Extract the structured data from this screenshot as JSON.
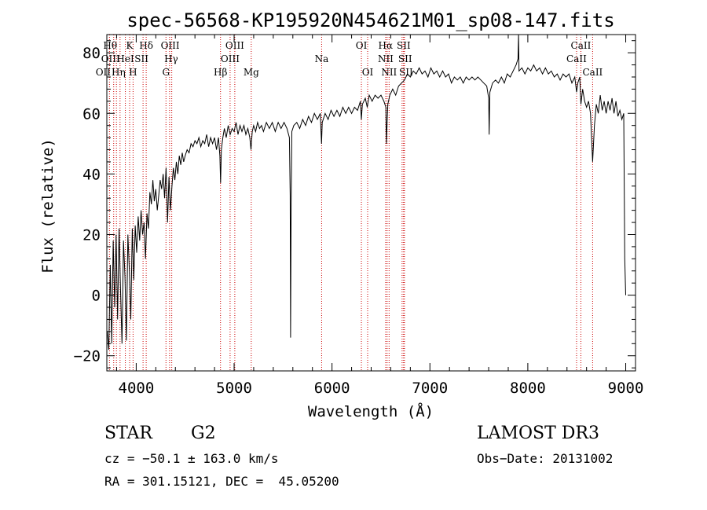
{
  "chart_data": {
    "type": "line",
    "title": "spec-56568-KP195920N454621M01_sp08-147.fits",
    "xlabel": "Wavelength (Å)",
    "ylabel": "Flux (relative)",
    "xlim": [
      3700,
      9100
    ],
    "ylim": [
      -25,
      86
    ],
    "xticks": [
      4000,
      5000,
      6000,
      7000,
      8000,
      9000
    ],
    "yticks": [
      -20,
      0,
      20,
      40,
      60,
      80
    ],
    "grid": false,
    "series": [
      {
        "name": "spectrum",
        "points": [
          [
            3705,
            -12
          ],
          [
            3720,
            -18
          ],
          [
            3735,
            10
          ],
          [
            3750,
            -16
          ],
          [
            3765,
            18
          ],
          [
            3780,
            -4
          ],
          [
            3795,
            20
          ],
          [
            3810,
            -8
          ],
          [
            3825,
            22
          ],
          [
            3840,
            2
          ],
          [
            3855,
            -16
          ],
          [
            3870,
            18
          ],
          [
            3885,
            6
          ],
          [
            3900,
            -15
          ],
          [
            3915,
            20
          ],
          [
            3930,
            8
          ],
          [
            3945,
            -8
          ],
          [
            3960,
            22
          ],
          [
            3975,
            5
          ],
          [
            3990,
            23
          ],
          [
            4005,
            14
          ],
          [
            4020,
            26
          ],
          [
            4035,
            18
          ],
          [
            4050,
            28
          ],
          [
            4065,
            20
          ],
          [
            4080,
            24
          ],
          [
            4095,
            12
          ],
          [
            4110,
            27
          ],
          [
            4125,
            22
          ],
          [
            4140,
            34
          ],
          [
            4155,
            30
          ],
          [
            4170,
            38
          ],
          [
            4185,
            31
          ],
          [
            4200,
            35
          ],
          [
            4215,
            28
          ],
          [
            4230,
            33
          ],
          [
            4245,
            38
          ],
          [
            4260,
            35
          ],
          [
            4275,
            40
          ],
          [
            4290,
            32
          ],
          [
            4305,
            42
          ],
          [
            4320,
            24
          ],
          [
            4335,
            39
          ],
          [
            4350,
            28
          ],
          [
            4365,
            36
          ],
          [
            4380,
            42
          ],
          [
            4395,
            38
          ],
          [
            4410,
            44
          ],
          [
            4425,
            40
          ],
          [
            4440,
            46
          ],
          [
            4455,
            43
          ],
          [
            4470,
            47
          ],
          [
            4485,
            44
          ],
          [
            4500,
            46
          ],
          [
            4520,
            48
          ],
          [
            4540,
            47
          ],
          [
            4560,
            50
          ],
          [
            4580,
            49
          ],
          [
            4600,
            51
          ],
          [
            4620,
            50
          ],
          [
            4640,
            52
          ],
          [
            4660,
            49
          ],
          [
            4680,
            51
          ],
          [
            4700,
            50
          ],
          [
            4720,
            53
          ],
          [
            4740,
            49
          ],
          [
            4760,
            52
          ],
          [
            4780,
            50
          ],
          [
            4800,
            52
          ],
          [
            4820,
            48
          ],
          [
            4840,
            52
          ],
          [
            4855,
            46
          ],
          [
            4862,
            37
          ],
          [
            4870,
            48
          ],
          [
            4885,
            52
          ],
          [
            4900,
            55
          ],
          [
            4920,
            52
          ],
          [
            4940,
            56
          ],
          [
            4960,
            53
          ],
          [
            4980,
            55
          ],
          [
            5000,
            54
          ],
          [
            5020,
            57
          ],
          [
            5040,
            53
          ],
          [
            5060,
            56
          ],
          [
            5080,
            54
          ],
          [
            5100,
            56
          ],
          [
            5120,
            53
          ],
          [
            5140,
            55
          ],
          [
            5160,
            52
          ],
          [
            5172,
            48
          ],
          [
            5185,
            54
          ],
          [
            5200,
            56
          ],
          [
            5220,
            54
          ],
          [
            5240,
            57
          ],
          [
            5260,
            55
          ],
          [
            5280,
            56
          ],
          [
            5300,
            54
          ],
          [
            5330,
            57
          ],
          [
            5360,
            55
          ],
          [
            5390,
            57
          ],
          [
            5420,
            54
          ],
          [
            5450,
            57
          ],
          [
            5480,
            55
          ],
          [
            5510,
            57
          ],
          [
            5540,
            55
          ],
          [
            5565,
            52
          ],
          [
            5573,
            33
          ],
          [
            5577,
            -14
          ],
          [
            5582,
            30
          ],
          [
            5590,
            54
          ],
          [
            5610,
            56
          ],
          [
            5640,
            57
          ],
          [
            5670,
            55
          ],
          [
            5700,
            58
          ],
          [
            5730,
            56
          ],
          [
            5760,
            59
          ],
          [
            5790,
            57
          ],
          [
            5820,
            60
          ],
          [
            5850,
            58
          ],
          [
            5880,
            60
          ],
          [
            5893,
            50
          ],
          [
            5900,
            57
          ],
          [
            5930,
            60
          ],
          [
            5960,
            58
          ],
          [
            5990,
            61
          ],
          [
            6020,
            59
          ],
          [
            6050,
            61
          ],
          [
            6080,
            59
          ],
          [
            6110,
            62
          ],
          [
            6140,
            60
          ],
          [
            6170,
            62
          ],
          [
            6200,
            60
          ],
          [
            6230,
            62
          ],
          [
            6260,
            61
          ],
          [
            6290,
            64
          ],
          [
            6300,
            58
          ],
          [
            6310,
            63
          ],
          [
            6340,
            65
          ],
          [
            6360,
            62
          ],
          [
            6380,
            66
          ],
          [
            6410,
            64
          ],
          [
            6440,
            66
          ],
          [
            6470,
            65
          ],
          [
            6500,
            66
          ],
          [
            6530,
            64
          ],
          [
            6550,
            62
          ],
          [
            6556,
            50
          ],
          [
            6563,
            57
          ],
          [
            6570,
            63
          ],
          [
            6590,
            66
          ],
          [
            6620,
            68
          ],
          [
            6650,
            66
          ],
          [
            6680,
            69
          ],
          [
            6710,
            70
          ],
          [
            6740,
            71
          ],
          [
            6770,
            73
          ],
          [
            6800,
            72
          ],
          [
            6830,
            74
          ],
          [
            6860,
            73
          ],
          [
            6890,
            75
          ],
          [
            6920,
            73
          ],
          [
            6950,
            74
          ],
          [
            6980,
            72
          ],
          [
            7010,
            75
          ],
          [
            7040,
            73
          ],
          [
            7070,
            74
          ],
          [
            7100,
            72
          ],
          [
            7130,
            74
          ],
          [
            7160,
            72
          ],
          [
            7190,
            73
          ],
          [
            7220,
            70
          ],
          [
            7250,
            72
          ],
          [
            7280,
            71
          ],
          [
            7310,
            72
          ],
          [
            7340,
            70
          ],
          [
            7370,
            72
          ],
          [
            7400,
            71
          ],
          [
            7430,
            72
          ],
          [
            7460,
            71
          ],
          [
            7490,
            72
          ],
          [
            7520,
            71
          ],
          [
            7550,
            70
          ],
          [
            7580,
            69
          ],
          [
            7600,
            65
          ],
          [
            7605,
            53
          ],
          [
            7612,
            67
          ],
          [
            7640,
            70
          ],
          [
            7670,
            71
          ],
          [
            7700,
            70
          ],
          [
            7730,
            72
          ],
          [
            7760,
            70
          ],
          [
            7790,
            73
          ],
          [
            7820,
            72
          ],
          [
            7850,
            74
          ],
          [
            7880,
            76
          ],
          [
            7900,
            78
          ],
          [
            7905,
            86
          ],
          [
            7910,
            74
          ],
          [
            7940,
            75
          ],
          [
            7970,
            73
          ],
          [
            8000,
            75
          ],
          [
            8030,
            74
          ],
          [
            8060,
            76
          ],
          [
            8090,
            74
          ],
          [
            8120,
            75
          ],
          [
            8150,
            73
          ],
          [
            8180,
            75
          ],
          [
            8210,
            73
          ],
          [
            8240,
            74
          ],
          [
            8270,
            72
          ],
          [
            8300,
            73
          ],
          [
            8330,
            71
          ],
          [
            8360,
            73
          ],
          [
            8390,
            72
          ],
          [
            8420,
            73
          ],
          [
            8450,
            70
          ],
          [
            8480,
            72
          ],
          [
            8498,
            67
          ],
          [
            8510,
            70
          ],
          [
            8530,
            72
          ],
          [
            8542,
            63
          ],
          [
            8560,
            68
          ],
          [
            8580,
            64
          ],
          [
            8600,
            62
          ],
          [
            8620,
            64
          ],
          [
            8640,
            60
          ],
          [
            8662,
            44
          ],
          [
            8680,
            56
          ],
          [
            8700,
            63
          ],
          [
            8720,
            60
          ],
          [
            8740,
            66
          ],
          [
            8760,
            61
          ],
          [
            8780,
            64
          ],
          [
            8800,
            60
          ],
          [
            8820,
            64
          ],
          [
            8840,
            61
          ],
          [
            8860,
            65
          ],
          [
            8880,
            60
          ],
          [
            8900,
            64
          ],
          [
            8920,
            59
          ],
          [
            8940,
            61
          ],
          [
            8960,
            58
          ],
          [
            8980,
            60
          ],
          [
            8990,
            12
          ],
          [
            9000,
            0
          ]
        ]
      }
    ],
    "line_annotations": [
      {
        "name": "OII",
        "wavelength": 3727,
        "label": "OII",
        "row": 2,
        "dx": -8
      },
      {
        "name": "Hθ",
        "wavelength": 3798,
        "label": "Hθ",
        "row": 0,
        "dx": -8
      },
      {
        "name": "OIII",
        "wavelength": 3770,
        "label": "OIII",
        "row": 1,
        "dx": -4
      },
      {
        "name": "Hη",
        "wavelength": 3835,
        "label": "Hη",
        "row": 2,
        "dx": -2
      },
      {
        "name": "HeI",
        "wavelength": 3889,
        "label": "HeI",
        "row": 1,
        "dx": 0
      },
      {
        "name": "K",
        "wavelength": 3933,
        "label": "K",
        "row": 0,
        "dx": 0
      },
      {
        "name": "H",
        "wavelength": 3968,
        "label": "H",
        "row": 2,
        "dx": 0
      },
      {
        "name": "SII",
        "wavelength": 4070,
        "label": "SII",
        "row": 1,
        "dx": -2
      },
      {
        "name": "Hδ",
        "wavelength": 4102,
        "label": "Hδ",
        "row": 0,
        "dx": 0
      },
      {
        "name": "G",
        "wavelength": 4304,
        "label": "G",
        "row": 2,
        "dx": 0
      },
      {
        "name": "OIII-4363",
        "wavelength": 4363,
        "label": "OIII",
        "row": 0,
        "dx": -2
      },
      {
        "name": "Hγ",
        "wavelength": 4341,
        "label": "Hγ",
        "row": 1,
        "dx": 2
      },
      {
        "name": "Hβ",
        "wavelength": 4861,
        "label": "Hβ",
        "row": 2,
        "dx": 0
      },
      {
        "name": "OIII-4959",
        "wavelength": 4959,
        "label": "OIII",
        "row": 1,
        "dx": 0
      },
      {
        "name": "OIII-5007",
        "wavelength": 5007,
        "label": "OIII",
        "row": 0,
        "dx": 0
      },
      {
        "name": "Mg",
        "wavelength": 5175,
        "label": "Mg",
        "row": 2,
        "dx": 0
      },
      {
        "name": "Na",
        "wavelength": 5894,
        "label": "Na",
        "row": 1,
        "dx": 0
      },
      {
        "name": "OI-6300",
        "wavelength": 6300,
        "label": "OI",
        "row": 0,
        "dx": 0
      },
      {
        "name": "OI-6364",
        "wavelength": 6364,
        "label": "OI",
        "row": 2,
        "dx": 0
      },
      {
        "name": "NII-6548",
        "wavelength": 6548,
        "label": "NII",
        "row": 1,
        "dx": 0
      },
      {
        "name": "Hα",
        "wavelength": 6563,
        "label": "Hα",
        "row": 0,
        "dx": -2
      },
      {
        "name": "NII-6583",
        "wavelength": 6583,
        "label": "NII",
        "row": 2,
        "dx": 0
      },
      {
        "name": "SII-6716",
        "wavelength": 6716,
        "label": "SII",
        "row": 0,
        "dx": 2
      },
      {
        "name": "SII-6731",
        "wavelength": 6731,
        "label": "SII",
        "row": 1,
        "dx": 2
      },
      {
        "name": "SII-6731b",
        "wavelength": 6740,
        "label": "SII",
        "row": 2,
        "dx": 2
      },
      {
        "name": "CaII-8498",
        "wavelength": 8498,
        "label": "CaII",
        "row": 1,
        "dx": 0
      },
      {
        "name": "CaII-8542",
        "wavelength": 8542,
        "label": "CaII",
        "row": 0,
        "dx": 0
      },
      {
        "name": "CaII-8662",
        "wavelength": 8662,
        "label": "CaII",
        "row": 2,
        "dx": 0
      }
    ],
    "colors": {
      "line": "#000000",
      "marker": "#cc0000",
      "axis": "#000000"
    }
  },
  "info": {
    "object_class": "STAR",
    "subclass": "G2",
    "survey": "LAMOST DR3",
    "redshift": "cz = −50.1 ± 163.0 km/s",
    "obs_date": "Obs−Date: 20131002",
    "coords": "RA = 301.15121, DEC =  45.05200"
  }
}
